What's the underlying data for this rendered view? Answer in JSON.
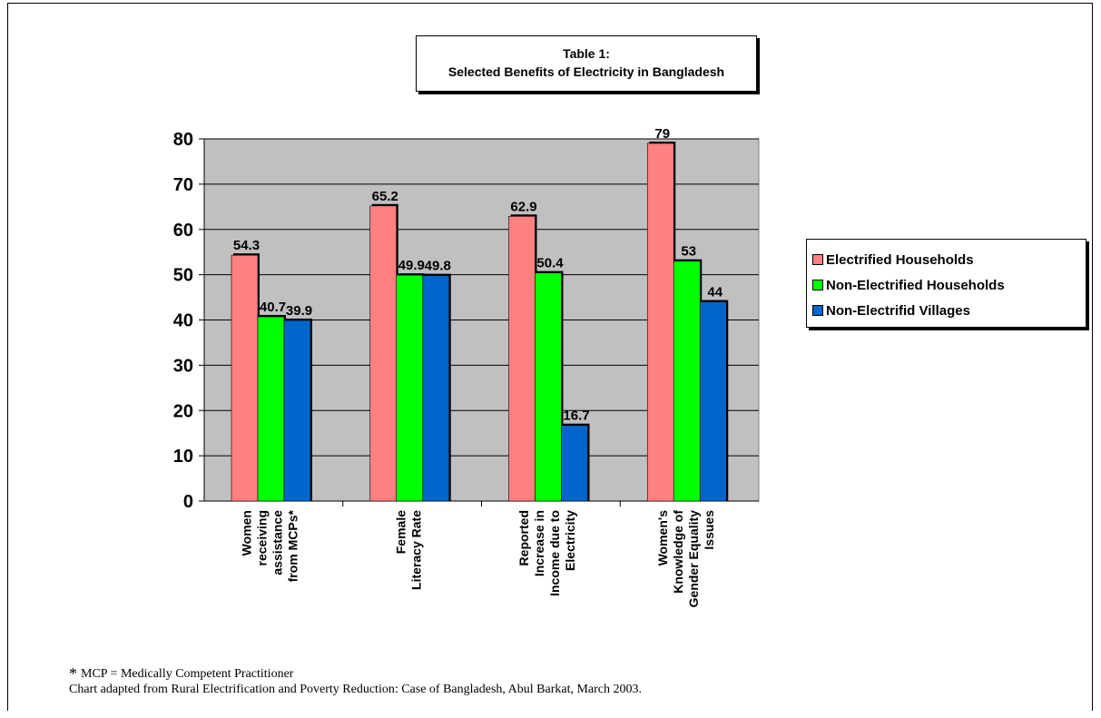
{
  "chart_data": {
    "type": "bar",
    "title_line1": "Table 1:",
    "title_line2": "Selected Benefits of Electricity in Bangladesh",
    "categories": [
      [
        "Women",
        "receiving",
        "assistance",
        "from MCPs*"
      ],
      [
        "Female",
        "Literacy Rate"
      ],
      [
        "Reported",
        "Increase in",
        "Income due to",
        "Electricity"
      ],
      [
        "Women's",
        "Knowledge of",
        "Gender Equality",
        "Issues"
      ]
    ],
    "series": [
      {
        "name": "Electrified Households",
        "color": "#ff8080",
        "values": [
          54.3,
          65.2,
          62.9,
          79
        ]
      },
      {
        "name": "Non-Electrified Households",
        "color": "#00ff00",
        "values": [
          40.7,
          49.9,
          50.4,
          53
        ]
      },
      {
        "name": "Non-Electrifid Villages",
        "color": "#0066cc",
        "values": [
          39.9,
          49.8,
          16.7,
          44
        ]
      }
    ],
    "y_ticks": [
      "0",
      "10",
      "20",
      "30",
      "40",
      "50",
      "60",
      "70",
      "80"
    ],
    "ylim": [
      0,
      80
    ],
    "grid": true,
    "legend_position": "right",
    "plot_background": "#c0c0c0"
  },
  "footnote": {
    "star": "*",
    "text": "MCP = Medically Competent Practitioner"
  },
  "source": "Chart adapted from Rural Electrification and Poverty Reduction: Case of Bangladesh, Abul Barkat, March 2003."
}
